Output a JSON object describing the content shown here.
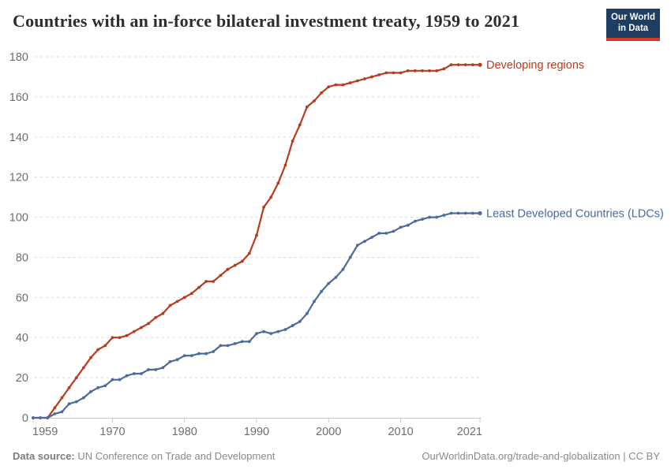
{
  "header": {
    "title": "Countries with an in-force bilateral investment treaty, 1959 to 2021",
    "logo_line1": "Our World",
    "logo_line2": "in Data",
    "logo_bg": "#1d3d63",
    "logo_bar": "#dc352c"
  },
  "chart_data": {
    "type": "line",
    "title": "Countries with an in-force bilateral investment treaty, 1959 to 2021",
    "xlabel": "",
    "ylabel": "",
    "xlim": [
      1959,
      2021
    ],
    "ylim": [
      0,
      180
    ],
    "grid": "horizontal-dashed",
    "legend": "end-of-line-labels",
    "xticks": [
      1959,
      1970,
      1980,
      1990,
      2000,
      2010,
      2021
    ],
    "yticks": [
      0,
      20,
      40,
      60,
      80,
      100,
      120,
      140,
      160,
      180
    ],
    "x": [
      1959,
      1960,
      1961,
      1962,
      1963,
      1964,
      1965,
      1966,
      1967,
      1968,
      1969,
      1970,
      1971,
      1972,
      1973,
      1974,
      1975,
      1976,
      1977,
      1978,
      1979,
      1980,
      1981,
      1982,
      1983,
      1984,
      1985,
      1986,
      1987,
      1988,
      1989,
      1990,
      1991,
      1992,
      1993,
      1994,
      1995,
      1996,
      1997,
      1998,
      1999,
      2000,
      2001,
      2002,
      2003,
      2004,
      2005,
      2006,
      2007,
      2008,
      2009,
      2010,
      2011,
      2012,
      2013,
      2014,
      2015,
      2016,
      2017,
      2018,
      2019,
      2020,
      2021
    ],
    "series": [
      {
        "name": "Developing regions",
        "color": "#b63c1f",
        "values": [
          0,
          0,
          0,
          5,
          10,
          15,
          20,
          25,
          30,
          34,
          36,
          40,
          40,
          41,
          43,
          45,
          47,
          50,
          52,
          56,
          58,
          60,
          62,
          65,
          68,
          68,
          71,
          74,
          76,
          78,
          82,
          91,
          105,
          110,
          117,
          126,
          138,
          146,
          155,
          158,
          162,
          165,
          166,
          166,
          167,
          168,
          169,
          170,
          171,
          172,
          172,
          172,
          173,
          173,
          173,
          173,
          173,
          174,
          176,
          176,
          176,
          176,
          176
        ]
      },
      {
        "name": "Least Developed Countries (LDCs)",
        "color": "#4c6a9c",
        "values": [
          0,
          0,
          0,
          2,
          3,
          7,
          8,
          10,
          13,
          15,
          16,
          19,
          19,
          21,
          22,
          22,
          24,
          24,
          25,
          28,
          29,
          31,
          31,
          32,
          32,
          33,
          36,
          36,
          37,
          38,
          38,
          42,
          43,
          42,
          43,
          44,
          46,
          48,
          52,
          58,
          63,
          67,
          70,
          74,
          80,
          86,
          88,
          90,
          92,
          92,
          93,
          95,
          96,
          98,
          99,
          100,
          100,
          101,
          102,
          102,
          102,
          102,
          102
        ]
      }
    ],
    "style": {
      "grid_color": "#dadada",
      "axis_color": "#c8c8c8",
      "tick_text_color": "#6e6e6e",
      "tick_font_size": 14.5
    }
  },
  "footer": {
    "source_label": "Data source:",
    "source_name": "UN Conference on Trade and Development",
    "url": "OurWorldinData.org/trade-and-globalization",
    "divider": "|",
    "license": "CC BY"
  }
}
